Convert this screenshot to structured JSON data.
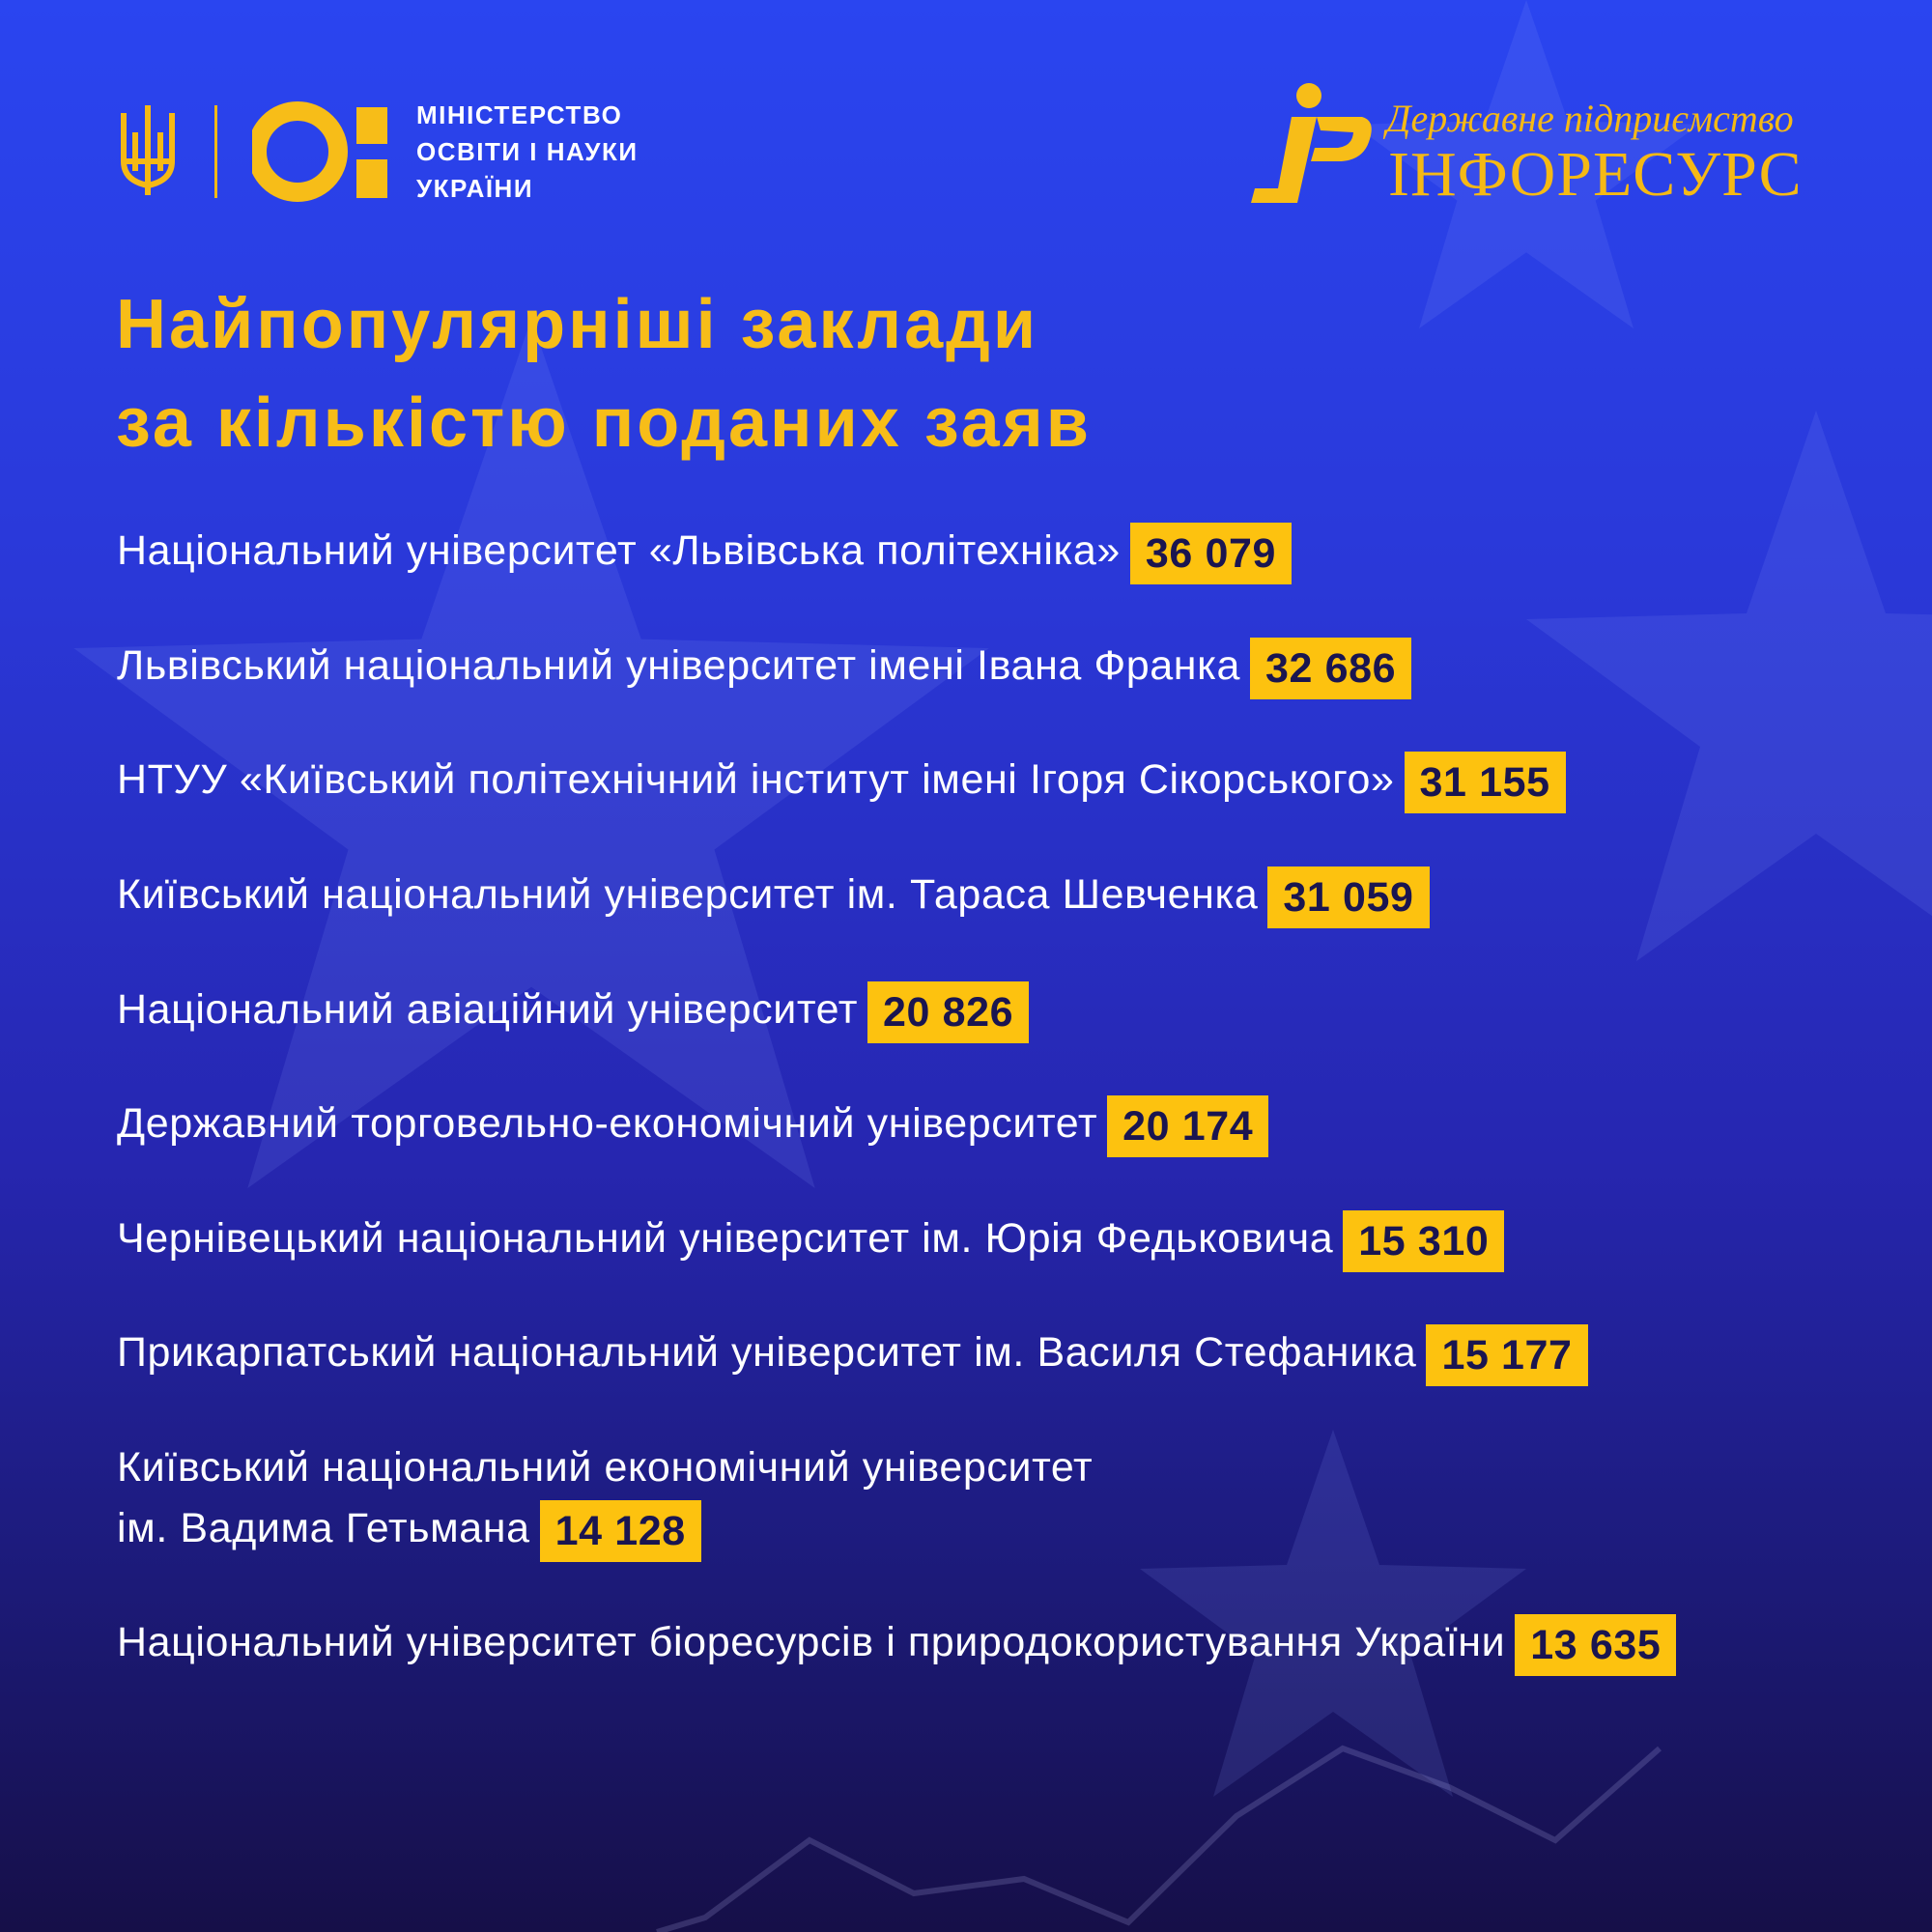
{
  "header": {
    "ministry_lines": [
      "МІНІСТЕРСТВО",
      "ОСВІТИ І НАУКИ",
      "УКРАЇНИ"
    ],
    "inforesurs_subtitle": "Державне підприємство",
    "inforesurs_name": "ІНФОРЕСУРС"
  },
  "title": {
    "line1": "Найпопулярніші заклади",
    "line2": "за кількістю поданих заяв"
  },
  "colors": {
    "accent": "#fdc20f",
    "background_top": "#2a45f0",
    "background_bottom": "#160f48"
  },
  "institutions": [
    {
      "name": "Національний університет «Львівська політехніка»",
      "count": "36 079"
    },
    {
      "name": "Львівський національний університет імені Івана Франка",
      "count": "32 686"
    },
    {
      "name": "НТУУ «Київський політехнічний інститут імені Ігоря Сікорського»",
      "count": "31 155"
    },
    {
      "name": "Київський національний університет ім. Тараса Шевченка",
      "count": "31 059"
    },
    {
      "name": "Національний авіаційний університет",
      "count": "20 826"
    },
    {
      "name": "Державний торговельно-економічний університет",
      "count": "20 174"
    },
    {
      "name": "Чернівецький національний університет ім. Юрія Федьковича",
      "count": "15 310"
    },
    {
      "name": "Прикарпатський національний університет ім. Василя Стефаника",
      "count": "15 177"
    },
    {
      "name": "Київський національний економічний університет",
      "name_line2": "ім. Вадима Гетьмана",
      "count": "14 128"
    },
    {
      "name": "Національний університет біоресурсів і природокористування України",
      "count": "13 635"
    }
  ]
}
